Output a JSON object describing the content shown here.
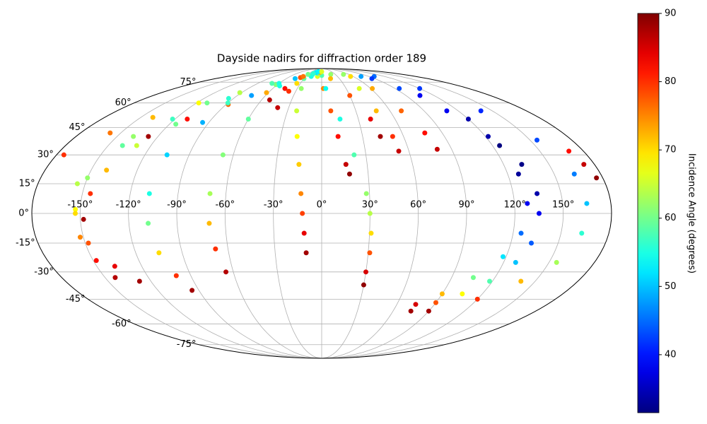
{
  "chart_data": {
    "type": "scatter",
    "projection": "mollweide",
    "title": "Dayside nadirs for diffraction order 189",
    "colorbar_label": "Incidence Angle (degrees)",
    "colormap": "jet",
    "grid": true,
    "clim": [
      31.5,
      90
    ],
    "cticks": [
      40,
      50,
      60,
      70,
      80,
      90
    ],
    "xlim": [
      -180,
      180
    ],
    "ylim": [
      -90,
      90
    ],
    "xticks": [
      {
        "value": -150,
        "label": "-150°"
      },
      {
        "value": -120,
        "label": "-120°"
      },
      {
        "value": -90,
        "label": "-90°"
      },
      {
        "value": -60,
        "label": "-60°"
      },
      {
        "value": -30,
        "label": "-30°"
      },
      {
        "value": 0,
        "label": "0°"
      },
      {
        "value": 30,
        "label": "30°"
      },
      {
        "value": 60,
        "label": "60°"
      },
      {
        "value": 90,
        "label": "90°"
      },
      {
        "value": 120,
        "label": "120°"
      },
      {
        "value": 150,
        "label": "150°"
      }
    ],
    "yticks": [
      {
        "value": -75,
        "label": "-75°"
      },
      {
        "value": -60,
        "label": "-60°"
      },
      {
        "value": -45,
        "label": "-45°"
      },
      {
        "value": -30,
        "label": "-30°"
      },
      {
        "value": -15,
        "label": "-15°"
      },
      {
        "value": 0,
        "label": "0°"
      },
      {
        "value": 15,
        "label": "15°"
      },
      {
        "value": 30,
        "label": "30°"
      },
      {
        "value": 45,
        "label": "45°"
      },
      {
        "value": 60,
        "label": "60°"
      },
      {
        "value": 75,
        "label": "75°"
      }
    ],
    "series": [
      {
        "x": [
          -175,
          -158,
          -140,
          -118,
          -92,
          -62,
          -30,
          0
        ],
        "y": [
          30,
          42,
          51,
          60,
          67,
          73,
          78,
          81
        ],
        "values": [
          80,
          76,
          72,
          68,
          64,
          61,
          59,
          58
        ]
      },
      {
        "x": [
          -127,
          -110,
          -88,
          -62,
          -35,
          -8,
          20
        ],
        "y": [
          40,
          50,
          59,
          67,
          74,
          80,
          82
        ],
        "values": [
          88,
          82,
          77,
          73,
          70,
          66,
          62
        ]
      },
      {
        "x": [
          -20,
          -60,
          -95,
          -122,
          -140,
          -150,
          -153,
          -152,
          -148,
          -143
        ],
        "y": [
          82,
          74,
          63,
          50,
          35,
          18,
          2,
          -12,
          -24,
          -33
        ],
        "values": [
          55,
          55,
          56,
          57,
          59,
          62,
          68,
          75,
          82,
          87
        ]
      },
      {
        "x": [
          -148,
          -145,
          -140,
          -130,
          -115,
          -90,
          -55,
          -20
        ],
        "y": [
          -3,
          10,
          22,
          35,
          47,
          60,
          72,
          80
        ],
        "values": [
          88,
          80,
          72,
          65,
          60,
          57,
          55,
          55
        ]
      },
      {
        "x": [
          -10,
          -70,
          -110,
          -138,
          -155,
          -153,
          -148,
          -138,
          -128
        ],
        "y": [
          83,
          74,
          60,
          40,
          15,
          0,
          -15,
          -27,
          -35
        ],
        "values": [
          58,
          58,
          60,
          62,
          64,
          70,
          78,
          84,
          88
        ]
      },
      {
        "x": [
          -15,
          -45,
          -75,
          -95,
          -105,
          -108,
          -108,
          -105,
          -100,
          -95
        ],
        "y": [
          84,
          78,
          65,
          48,
          30,
          10,
          -5,
          -20,
          -32,
          -40
        ],
        "values": [
          52,
          50,
          48,
          49,
          51,
          55,
          60,
          70,
          80,
          88
        ]
      },
      {
        "x": [
          -20,
          -45,
          -60,
          -67,
          -70,
          -70,
          -68,
          -65
        ],
        "y": [
          83,
          70,
          50,
          30,
          10,
          -5,
          -18,
          -30
        ],
        "values": [
          56,
          57,
          59,
          61,
          63,
          72,
          80,
          87
        ]
      },
      {
        "x": [
          -38,
          -45,
          -52
        ],
        "y": [
          79,
          70,
          62
        ],
        "values": [
          78,
          82,
          87
        ]
      },
      {
        "x": [
          -35,
          -38,
          -40
        ],
        "y": [
          80,
          68,
          57
        ],
        "values": [
          76,
          80,
          86
        ]
      },
      {
        "x": [
          -30,
          -25,
          -22,
          -18,
          -15,
          -13,
          -12,
          -11,
          -10
        ],
        "y": [
          82,
          70,
          55,
          40,
          25,
          10,
          0,
          -10,
          -20
        ],
        "values": [
          60,
          62,
          65,
          68,
          71,
          75,
          79,
          84,
          88
        ]
      },
      {
        "x": [
          -5,
          2,
          8,
          12,
          16,
          18
        ],
        "y": [
          84,
          70,
          55,
          40,
          25,
          20
        ],
        "values": [
          72,
          75,
          78,
          82,
          86,
          89
        ]
      },
      {
        "x": [
          -10,
          5,
          15,
          22,
          28,
          30,
          31,
          31,
          30,
          30
        ],
        "y": [
          85,
          70,
          50,
          30,
          10,
          0,
          -10,
          -20,
          -30,
          -37
        ],
        "values": [
          53,
          54,
          55,
          58,
          62,
          64,
          70,
          78,
          85,
          89
        ]
      },
      {
        "x": [
          0,
          15,
          30,
          40,
          43
        ],
        "y": [
          85,
          78,
          65,
          50,
          40
        ],
        "values": [
          66,
          72,
          78,
          84,
          88
        ]
      },
      {
        "x": [
          48,
          46,
          48,
          52,
          53
        ],
        "y": [
          82,
          70,
          55,
          40,
          32
        ],
        "values": [
          62,
          66,
          72,
          80,
          86
        ]
      },
      {
        "x": [
          55,
          62,
          70,
          77,
          80
        ],
        "y": [
          80,
          70,
          55,
          42,
          33
        ],
        "values": [
          70,
          73,
          77,
          82,
          86
        ]
      },
      {
        "x": [
          75,
          95,
          110,
          122,
          132,
          135,
          135,
          133,
          128,
          118,
          105,
          90,
          75
        ],
        "y": [
          80,
          70,
          55,
          40,
          25,
          10,
          0,
          -15,
          -25,
          -35,
          -42,
          -47,
          -52
        ],
        "values": [
          48,
          43,
          38,
          34,
          32,
          34,
          38,
          44,
          50,
          58,
          68,
          78,
          88
        ]
      },
      {
        "x": [
          100,
          120,
          140,
          155,
          163,
          165,
          163,
          155,
          140,
          120,
          90
        ],
        "y": [
          80,
          70,
          55,
          38,
          20,
          5,
          -10,
          -25,
          -35,
          -45,
          -52
        ],
        "values": [
          45,
          42,
          41,
          43,
          46,
          50,
          56,
          63,
          72,
          80,
          88
        ]
      },
      {
        "x": [
          85,
          105,
          120,
          125,
          127,
          128,
          125,
          118,
          105,
          90,
          75
        ],
        "y": [
          78,
          65,
          50,
          35,
          20,
          5,
          -10,
          -22,
          -33,
          -42,
          -48
        ],
        "values": [
          42,
          38,
          34,
          31.5,
          33,
          38,
          45,
          52,
          60,
          72,
          85
        ]
      },
      {
        "x": [
          170,
          173,
          176
        ],
        "y": [
          32,
          25,
          18
        ],
        "values": [
          82,
          86,
          89
        ]
      }
    ]
  }
}
